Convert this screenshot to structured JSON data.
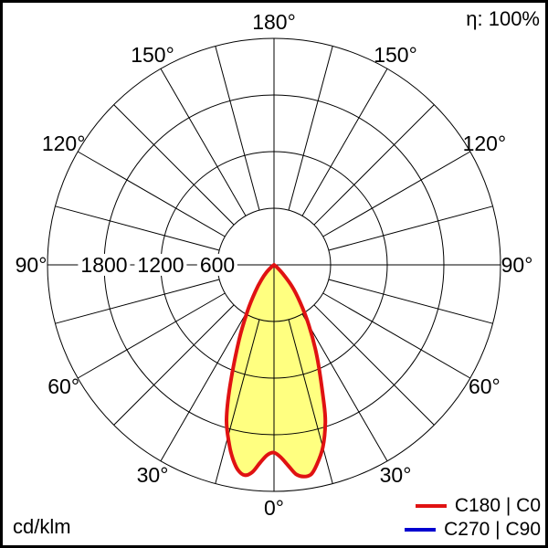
{
  "header": {
    "efficiency": "η: 100%"
  },
  "footer": {
    "unit": "cd/klm"
  },
  "legend": [
    {
      "label": "C180 | C0",
      "color": "#e01212"
    },
    {
      "label": "C270 | C90",
      "color": "#0000d0"
    }
  ],
  "chart_data": {
    "type": "polar",
    "subtype": "luminous-intensity-distribution",
    "unit": "cd/klm",
    "efficiency_label": "η: 100%",
    "rmax": 2400,
    "rings": [
      600,
      1200,
      1800,
      2400
    ],
    "ring_labels": [
      {
        "value": 1800,
        "text": "1800"
      },
      {
        "value": 1200,
        "text": "1200"
      },
      {
        "value": 600,
        "text": "600"
      }
    ],
    "angle_step_deg": 15,
    "angle_label_step_deg": 30,
    "angle_labels": [
      {
        "deg": 0,
        "text": "0°"
      },
      {
        "deg": 30,
        "text": "30°"
      },
      {
        "deg": 60,
        "text": "60°"
      },
      {
        "deg": 90,
        "text": "90°"
      },
      {
        "deg": 120,
        "text": "120°"
      },
      {
        "deg": 150,
        "text": "150°"
      },
      {
        "deg": 180,
        "text": "180°"
      }
    ],
    "grid": true,
    "legend_position": "bottom-right",
    "series": [
      {
        "name": "C180 | C0",
        "color": "#e01212",
        "fill": "#ffff80",
        "note": "gamma in degrees from nadir; negative = C180 half (left), positive = C0 half (right); values in cd/klm",
        "points_deg_cdklm": [
          [
            -55,
            0
          ],
          [
            -50,
            40
          ],
          [
            -45,
            115
          ],
          [
            -40,
            210
          ],
          [
            -35,
            345
          ],
          [
            -30,
            555
          ],
          [
            -25,
            875
          ],
          [
            -20,
            1360
          ],
          [
            -17,
            1720
          ],
          [
            -14,
            1960
          ],
          [
            -12,
            2100
          ],
          [
            -10,
            2205
          ],
          [
            -8,
            2250
          ],
          [
            -6,
            2210
          ],
          [
            -4,
            2100
          ],
          [
            -2,
            2015
          ],
          [
            0,
            1990
          ],
          [
            2,
            2040
          ],
          [
            4,
            2130
          ],
          [
            6,
            2230
          ],
          [
            8,
            2265
          ],
          [
            10,
            2255
          ],
          [
            12,
            2170
          ],
          [
            15,
            2000
          ],
          [
            18,
            1760
          ],
          [
            20,
            1540
          ],
          [
            25,
            1080
          ],
          [
            30,
            740
          ],
          [
            35,
            480
          ],
          [
            40,
            295
          ],
          [
            45,
            130
          ],
          [
            50,
            45
          ],
          [
            55,
            0
          ]
        ]
      }
    ]
  }
}
